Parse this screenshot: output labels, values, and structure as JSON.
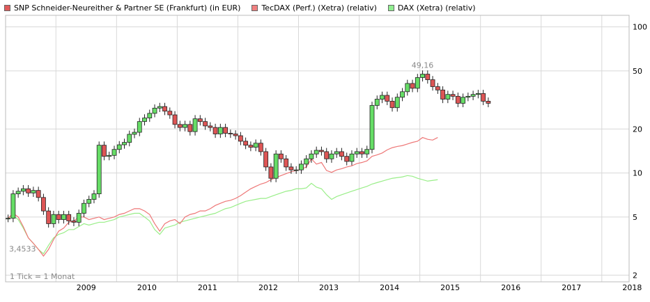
{
  "chart_data": {
    "type": "candlestick",
    "legend": [
      {
        "label": "SNP Schneider-Neureither & Partner SE (Frankfurt) (in EUR)",
        "color": "#e05a5a"
      },
      {
        "label": "TecDAX (Perf.) (Xetra) (relativ)",
        "color": "#f08080"
      },
      {
        "label": "DAX (Xetra) (relativ)",
        "color": "#90ee90"
      }
    ],
    "y_scale": "log",
    "ylim": [
      1.8,
      120
    ],
    "y_ticks": [
      2,
      5,
      10,
      20,
      50,
      100
    ],
    "x_ticks": [
      "2009",
      "2010",
      "2011",
      "2012",
      "2013",
      "2014",
      "2015",
      "2016",
      "2017",
      "2018"
    ],
    "x_range": [
      2008.17,
      2018.45
    ],
    "candle_colors": {
      "up": "#66dd66",
      "down": "#dd5555",
      "stroke": "#222222"
    },
    "line_colors": {
      "tecdax": "#ee7777",
      "dax": "#99ee88"
    },
    "annotations": {
      "high": "49,16",
      "low": "3,4533",
      "tick_note": "1 Tick = 1 Monat"
    },
    "snp_monthly_close": [
      4.9,
      7.2,
      7.5,
      7.8,
      7.3,
      7.6,
      6.8,
      5.5,
      4.5,
      5.2,
      4.8,
      5.2,
      4.7,
      4.6,
      5.3,
      6.2,
      6.6,
      7.2,
      15.5,
      13.0,
      13.2,
      14.5,
      15.6,
      16.2,
      18.4,
      19.0,
      22.5,
      23.8,
      25.6,
      27.8,
      28.5,
      26.5,
      25.0,
      21.5,
      20.5,
      21.5,
      19.2,
      23.5,
      22.5,
      21.0,
      20.5,
      18.5,
      20.5,
      18.7,
      18.5,
      18.0,
      16.5,
      15.5,
      15.0,
      16.0,
      14.0,
      11.0,
      9.2,
      13.5,
      12.5,
      11.0,
      10.5,
      10.5,
      11.5,
      12.5,
      13.5,
      14.3,
      14.0,
      12.5,
      13.5,
      14.0,
      13.0,
      12.0,
      13.5,
      14.0,
      13.5,
      14.5,
      29.0,
      32.0,
      34.0,
      31.0,
      28.0,
      33.0,
      36.0,
      41.0,
      38.0,
      45.0,
      47.5,
      43.5,
      39.0,
      37.0,
      32.0,
      34.5,
      33.5,
      30.0,
      33.0,
      33.5,
      34.5,
      35.0,
      31.0,
      30.0
    ],
    "tecdax_relative": [
      4.9,
      5.3,
      5.0,
      4.3,
      3.6,
      3.3,
      3.0,
      2.7,
      3.0,
      3.5,
      4.0,
      4.2,
      4.6,
      4.7,
      5.0,
      5.0,
      4.8,
      4.9,
      5.0,
      4.8,
      4.9,
      5.0,
      5.2,
      5.3,
      5.5,
      5.7,
      5.7,
      5.5,
      5.2,
      4.5,
      4.0,
      4.5,
      4.7,
      4.8,
      4.5,
      5.0,
      5.2,
      5.3,
      5.5,
      5.5,
      5.7,
      6.0,
      6.2,
      6.4,
      6.5,
      6.7,
      7.0,
      7.4,
      7.8,
      8.1,
      8.4,
      8.6,
      9.0,
      9.3,
      9.6,
      9.9,
      10.2,
      10.4,
      10.6,
      11.0,
      12.5,
      11.5,
      11.8,
      10.4,
      10.1,
      10.5,
      10.7,
      11.0,
      11.2,
      11.6,
      11.8,
      12.1,
      13.0,
      13.3,
      13.7,
      14.4,
      14.9,
      15.2,
      15.4,
      15.8,
      16.2,
      16.5,
      17.5,
      17.0,
      16.8,
      17.5
    ],
    "dax_relative": [
      4.9,
      5.1,
      4.8,
      4.2,
      3.6,
      3.3,
      3.0,
      2.8,
      3.2,
      3.6,
      3.8,
      3.9,
      4.1,
      4.1,
      4.3,
      4.5,
      4.4,
      4.5,
      4.6,
      4.6,
      4.7,
      4.8,
      5.0,
      5.1,
      5.2,
      5.3,
      5.3,
      5.0,
      4.7,
      4.1,
      3.8,
      4.2,
      4.3,
      4.4,
      4.6,
      4.7,
      4.8,
      4.9,
      5.0,
      5.1,
      5.2,
      5.3,
      5.5,
      5.7,
      5.8,
      6.0,
      6.2,
      6.4,
      6.5,
      6.6,
      6.7,
      6.7,
      6.9,
      7.1,
      7.3,
      7.5,
      7.6,
      7.8,
      7.8,
      7.9,
      8.5,
      8.0,
      7.8,
      7.1,
      6.6,
      6.9,
      7.1,
      7.3,
      7.5,
      7.7,
      7.9,
      8.1,
      8.4,
      8.6,
      8.8,
      9.0,
      9.2,
      9.3,
      9.4,
      9.6,
      9.5,
      9.2,
      9.0,
      8.8,
      8.9,
      9.0
    ]
  }
}
